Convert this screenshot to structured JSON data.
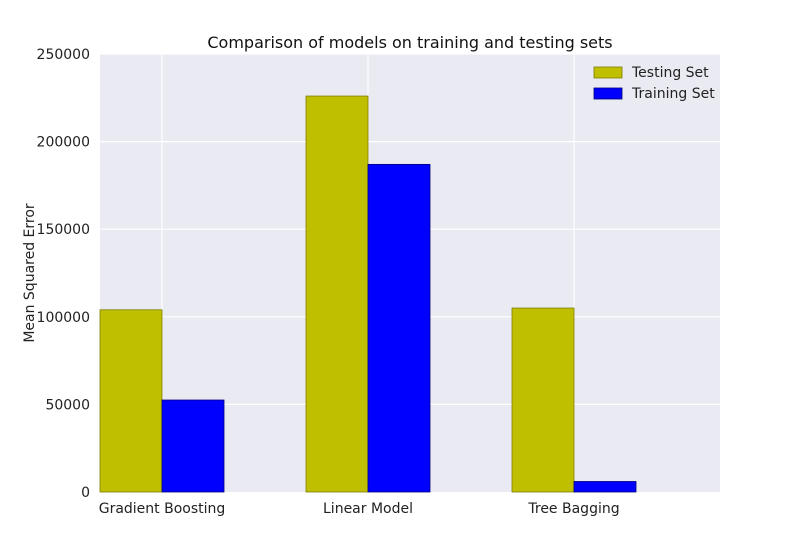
{
  "chart_data": {
    "type": "bar",
    "title": "Comparison of models on training and testing sets",
    "xlabel": "",
    "ylabel": "Mean Squared Error",
    "categories": [
      "Gradient Boosting",
      "Linear Model",
      "Tree Bagging"
    ],
    "series": [
      {
        "name": "Testing Set",
        "color": "#bfbf00",
        "values": [
          104000,
          226000,
          105000
        ]
      },
      {
        "name": "Training Set",
        "color": "#0000ff",
        "values": [
          52500,
          187000,
          6000
        ]
      }
    ],
    "ylim": [
      0,
      250000
    ],
    "yticks": [
      0,
      50000,
      100000,
      150000,
      200000,
      250000
    ],
    "ytick_labels": [
      "0",
      "50000",
      "100000",
      "150000",
      "200000",
      "250000"
    ],
    "grid": true,
    "legend_position": "top-right",
    "plot_background": "#eaeaf2"
  }
}
